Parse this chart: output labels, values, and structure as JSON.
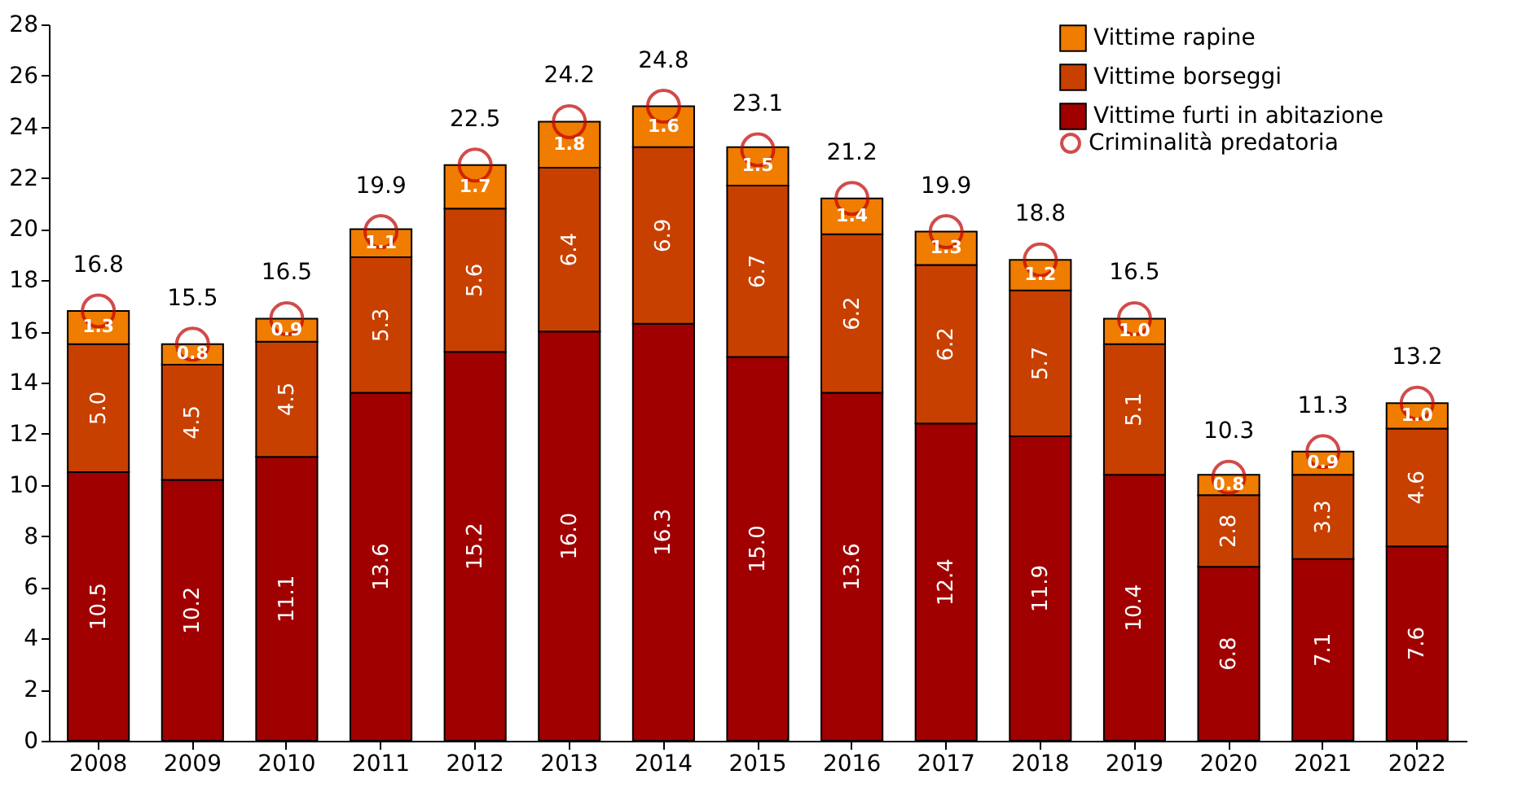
{
  "chart_data": {
    "type": "bar",
    "stacked": true,
    "categories": [
      "2008",
      "2009",
      "2010",
      "2011",
      "2012",
      "2013",
      "2014",
      "2015",
      "2016",
      "2017",
      "2018",
      "2019",
      "2020",
      "2021",
      "2022"
    ],
    "series": [
      {
        "name": "Vittime furti in abitazione",
        "color": "#a00000",
        "values": [
          10.5,
          10.2,
          11.1,
          13.6,
          15.2,
          16.0,
          16.3,
          15.0,
          13.6,
          12.4,
          11.9,
          10.4,
          6.8,
          7.1,
          7.6
        ],
        "value_labels": [
          "10.5",
          "10.2",
          "11.1",
          "13.6",
          "15.2",
          "16.0",
          "16.3",
          "15.0",
          "13.6",
          "12.4",
          "11.9",
          "10.4",
          "6.8",
          "7.1",
          "7.6"
        ]
      },
      {
        "name": "Vittime borseggi",
        "color": "#c84000",
        "values": [
          5.0,
          4.5,
          4.5,
          5.3,
          5.6,
          6.4,
          6.9,
          6.7,
          6.2,
          6.2,
          5.7,
          5.1,
          2.8,
          3.3,
          4.6
        ],
        "value_labels": [
          "5.0",
          "4.5",
          "4.5",
          "5.3",
          "5.6",
          "6.4",
          "6.9",
          "6.7",
          "6.2",
          "6.2",
          "5.7",
          "5.1",
          "2.8",
          "3.3",
          "4.6"
        ]
      },
      {
        "name": "Vittime rapine",
        "color": "#f07c00",
        "values": [
          1.3,
          0.8,
          0.9,
          1.1,
          1.7,
          1.8,
          1.6,
          1.5,
          1.4,
          1.3,
          1.2,
          1.0,
          0.8,
          0.9,
          1.0
        ],
        "value_labels": [
          "1.3",
          "0.8",
          "0.9",
          "1.1",
          "1.7",
          "1.8",
          "1.6",
          "1.5",
          "1.4",
          "1.3",
          "1.2",
          "1.0",
          "0.8",
          "0.9",
          "1.0"
        ]
      },
      {
        "name": "Criminalità predatoria",
        "type": "scatter",
        "marker": "circle",
        "color": "#c00000",
        "values": [
          16.8,
          15.5,
          16.5,
          19.9,
          22.5,
          24.2,
          24.8,
          23.1,
          21.2,
          19.9,
          18.8,
          16.5,
          10.3,
          11.3,
          13.2
        ]
      }
    ],
    "ylim": [
      0,
      28
    ],
    "yticks": [
      0,
      2,
      4,
      6,
      8,
      10,
      12,
      14,
      16,
      18,
      20,
      22,
      24,
      26,
      28
    ],
    "grid": false,
    "legend": "top right",
    "data_labels": true
  }
}
